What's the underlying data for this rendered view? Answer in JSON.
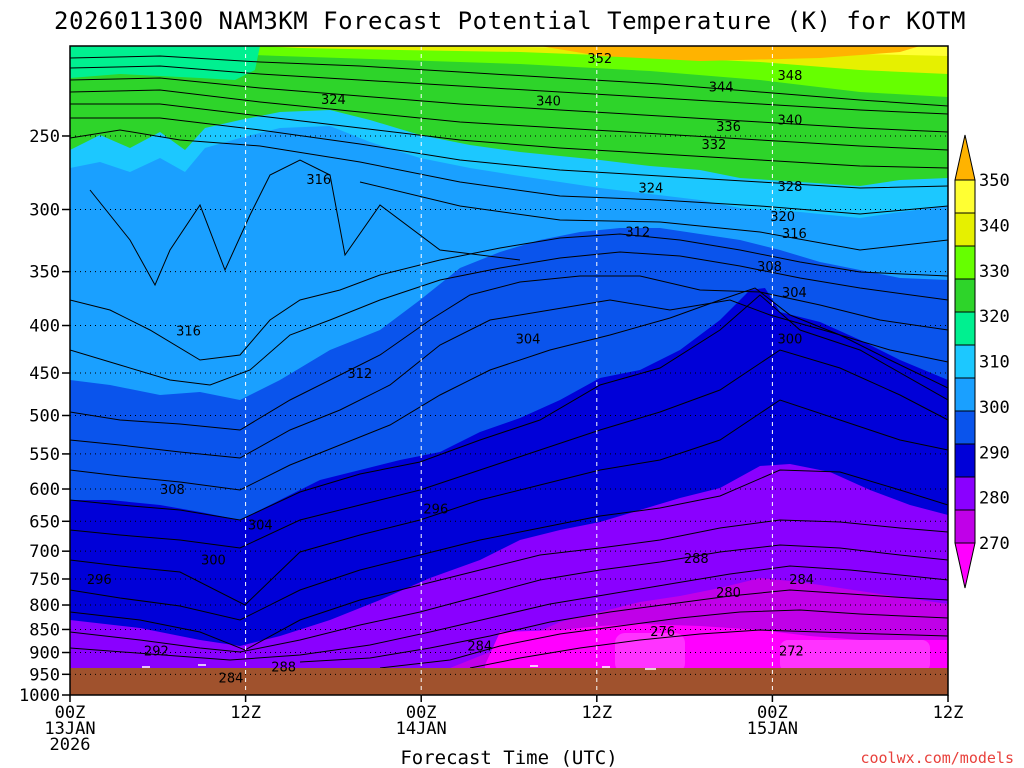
{
  "chart_data": {
    "type": "contour",
    "title": "2026011300 NAM3KM Forecast Potential Temperature (K) for KOTM",
    "xlabel": "Forecast Time (UTC)",
    "ylabel": "",
    "credit": "coolwx.com/models",
    "x_ticks": [
      {
        "hours": 0,
        "line1": "00Z",
        "line2": "13JAN",
        "line3": "2026"
      },
      {
        "hours": 12,
        "line1": "12Z",
        "line2": "",
        "line3": ""
      },
      {
        "hours": 24,
        "line1": "00Z",
        "line2": "14JAN",
        "line3": ""
      },
      {
        "hours": 36,
        "line1": "12Z",
        "line2": "",
        "line3": ""
      },
      {
        "hours": 48,
        "line1": "00Z",
        "line2": "15JAN",
        "line3": ""
      },
      {
        "hours": 60,
        "line1": "12Z",
        "line2": "",
        "line3": ""
      }
    ],
    "x_range_hours": [
      0,
      60
    ],
    "y_ticks": [
      "250",
      "300",
      "350",
      "400",
      "450",
      "500",
      "550",
      "600",
      "650",
      "700",
      "750",
      "800",
      "850",
      "900",
      "950",
      "1000"
    ],
    "y_range_hpa": [
      1000,
      200
    ],
    "colorbar": {
      "levels": [
        "270",
        "280",
        "290",
        "300",
        "310",
        "320",
        "330",
        "340",
        "350"
      ],
      "colors": [
        "#ff00ff",
        "#c000e8",
        "#8a00ff",
        "#0000d8",
        "#0a54ec",
        "#1aa0ff",
        "#1cc8ff",
        "#00f090",
        "#2ed42a",
        "#66ff00",
        "#e6f000",
        "#ffff33",
        "#ffb300"
      ]
    },
    "contour_labels": [
      {
        "value": "352",
        "hour": 36.2,
        "hpa": 206
      },
      {
        "value": "348",
        "hour": 49.2,
        "hpa": 215
      },
      {
        "value": "344",
        "hour": 44.5,
        "hpa": 221
      },
      {
        "value": "340",
        "hour": 32.7,
        "hpa": 229
      },
      {
        "value": "340",
        "hour": 49.2,
        "hpa": 240
      },
      {
        "value": "336",
        "hour": 45.0,
        "hpa": 244
      },
      {
        "value": "332",
        "hour": 44.0,
        "hpa": 255
      },
      {
        "value": "324",
        "hour": 18.0,
        "hpa": 228
      },
      {
        "value": "328",
        "hour": 49.2,
        "hpa": 283
      },
      {
        "value": "324",
        "hour": 39.7,
        "hpa": 284
      },
      {
        "value": "316",
        "hour": 17.0,
        "hpa": 278
      },
      {
        "value": "320",
        "hour": 48.7,
        "hpa": 305
      },
      {
        "value": "316",
        "hour": 49.5,
        "hpa": 318
      },
      {
        "value": "312",
        "hour": 38.8,
        "hpa": 317
      },
      {
        "value": "308",
        "hour": 47.8,
        "hpa": 345
      },
      {
        "value": "304",
        "hour": 49.5,
        "hpa": 368
      },
      {
        "value": "316",
        "hour": 8.1,
        "hpa": 405
      },
      {
        "value": "304",
        "hour": 31.3,
        "hpa": 413
      },
      {
        "value": "300",
        "hour": 49.2,
        "hpa": 413
      },
      {
        "value": "312",
        "hour": 19.8,
        "hpa": 450
      },
      {
        "value": "308",
        "hour": 7.0,
        "hpa": 600
      },
      {
        "value": "304",
        "hour": 13.0,
        "hpa": 655
      },
      {
        "value": "296",
        "hour": 25.0,
        "hpa": 630
      },
      {
        "value": "300",
        "hour": 9.8,
        "hpa": 715
      },
      {
        "value": "288",
        "hour": 42.8,
        "hpa": 712
      },
      {
        "value": "296",
        "hour": 2.0,
        "hpa": 750
      },
      {
        "value": "284",
        "hour": 50.0,
        "hpa": 750
      },
      {
        "value": "280",
        "hour": 45.0,
        "hpa": 775
      },
      {
        "value": "276",
        "hour": 40.5,
        "hpa": 853
      },
      {
        "value": "292",
        "hour": 5.9,
        "hpa": 895
      },
      {
        "value": "284",
        "hour": 28.0,
        "hpa": 885
      },
      {
        "value": "272",
        "hour": 49.3,
        "hpa": 895
      },
      {
        "value": "288",
        "hour": 14.6,
        "hpa": 932
      },
      {
        "value": "284",
        "hour": 11.0,
        "hpa": 957
      }
    ]
  }
}
